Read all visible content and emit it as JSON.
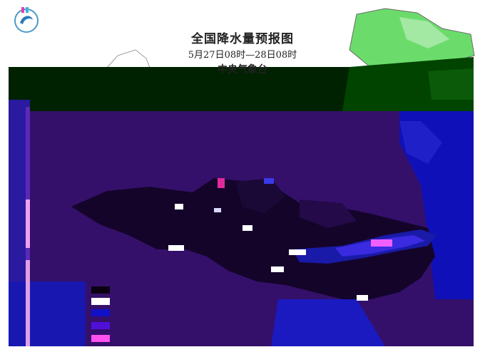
{
  "map": {
    "title": "全国降水量预报图",
    "period": "5月27日08时—28日08时",
    "agency": "中央气象台",
    "legend": {
      "title": "",
      "items": [
        {
          "label": "",
          "color": "#0a0010"
        },
        {
          "label": "",
          "color": "#ffffff"
        },
        {
          "label": "",
          "color": "#1010c8"
        },
        {
          "label": "",
          "color": "#5010d8"
        },
        {
          "label": "",
          "color": "#ff50f0"
        }
      ]
    },
    "colors": {
      "background": "#ffffff",
      "overlay": "#34106a",
      "land_green": "#5fd85f",
      "band": "#003300",
      "rain_light": "#1a1aa8",
      "rain_heavy": "#7a3af0",
      "rain_storm": "#f060ff"
    }
  }
}
